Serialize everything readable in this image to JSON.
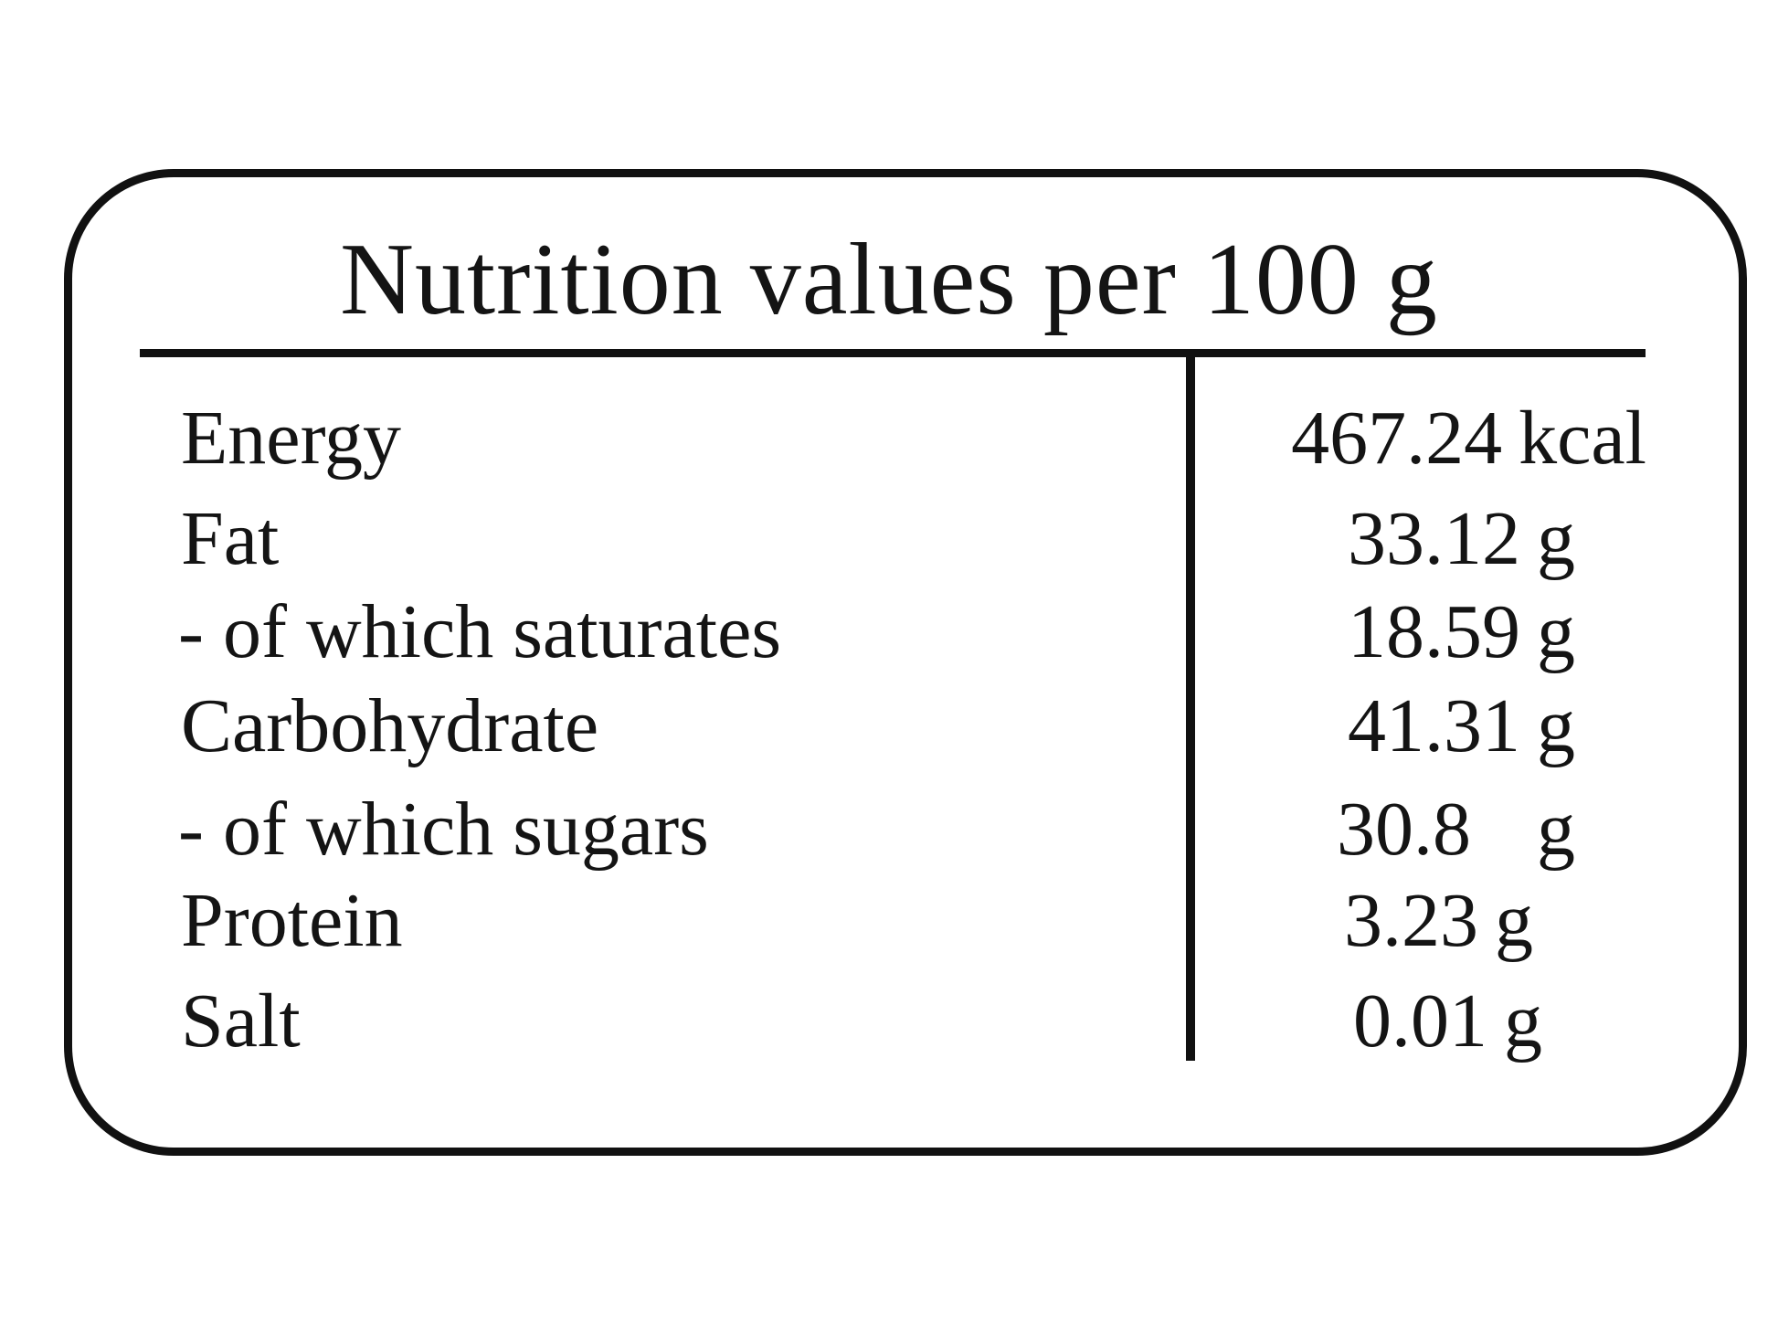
{
  "label": {
    "title": "Nutrition values per 100 g",
    "rows": [
      {
        "name": "Energy",
        "value": "467.24",
        "unit": "kcal"
      },
      {
        "name": "Fat",
        "value": "33.12",
        "unit": "g"
      },
      {
        "name": "- of which saturates",
        "value": "18.59",
        "unit": "g"
      },
      {
        "name": "Carbohydrate",
        "value": "41.31",
        "unit": "g"
      },
      {
        "name": "- of which sugars",
        "value": "30.8",
        "unit": "g"
      },
      {
        "name": "Protein",
        "value": "3.23",
        "unit": "g"
      },
      {
        "name": "Salt",
        "value": "0.01",
        "unit": "g"
      }
    ]
  }
}
